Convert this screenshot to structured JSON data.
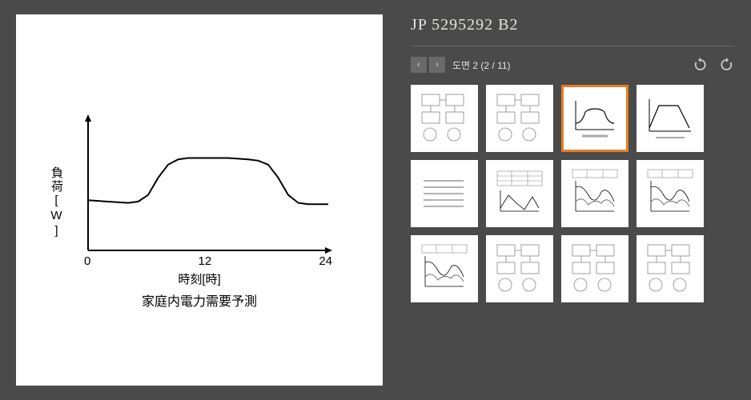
{
  "title": "JP 5295292 B2",
  "nav": {
    "prev_icon": "‹",
    "next_icon": "›",
    "figure_label": "도면 2 (2 / 11)"
  },
  "rotate": {
    "ccw_icon": "↺",
    "cw_icon": "↻"
  },
  "main_chart": {
    "type": "line",
    "y_label": "負荷[W]",
    "x_label": "時刻[時]",
    "caption": "家庭内電力需要予測",
    "x_ticks": [
      "0",
      "12",
      "24"
    ],
    "xlim": [
      0,
      24
    ],
    "ylim": [
      0,
      100
    ],
    "line_color": "#000000",
    "axis_color": "#000000",
    "background_color": "#ffffff",
    "line_width": 2,
    "axis_width": 2,
    "label_fontsize": 15,
    "caption_fontsize": 16,
    "points": [
      [
        0,
        38
      ],
      [
        2,
        37
      ],
      [
        4,
        36
      ],
      [
        5,
        37
      ],
      [
        6,
        42
      ],
      [
        7,
        55
      ],
      [
        8,
        65
      ],
      [
        9,
        69
      ],
      [
        10,
        70
      ],
      [
        12,
        70
      ],
      [
        14,
        70
      ],
      [
        16,
        69
      ],
      [
        17,
        68
      ],
      [
        18,
        65
      ],
      [
        19,
        55
      ],
      [
        20,
        42
      ],
      [
        21,
        36
      ],
      [
        22,
        35
      ],
      [
        23,
        35
      ],
      [
        24,
        35
      ]
    ]
  },
  "thumbnails": {
    "selected_index": 2,
    "count": 12,
    "selected_border_color": "#e67e22",
    "items": [
      {
        "kind": "diagram"
      },
      {
        "kind": "diagram"
      },
      {
        "kind": "curve"
      },
      {
        "kind": "trapezoid"
      },
      {
        "kind": "text"
      },
      {
        "kind": "table_chart"
      },
      {
        "kind": "multi_line"
      },
      {
        "kind": "multi_line"
      },
      {
        "kind": "multi_line"
      },
      {
        "kind": "diagram"
      },
      {
        "kind": "diagram"
      },
      {
        "kind": "diagram"
      }
    ]
  },
  "colors": {
    "page_bg": "#4a4a4a",
    "panel_bg": "#ffffff",
    "text_light": "#e5e3de",
    "btn_bg": "#6a6a6a",
    "divider": "#6a6a6a"
  }
}
